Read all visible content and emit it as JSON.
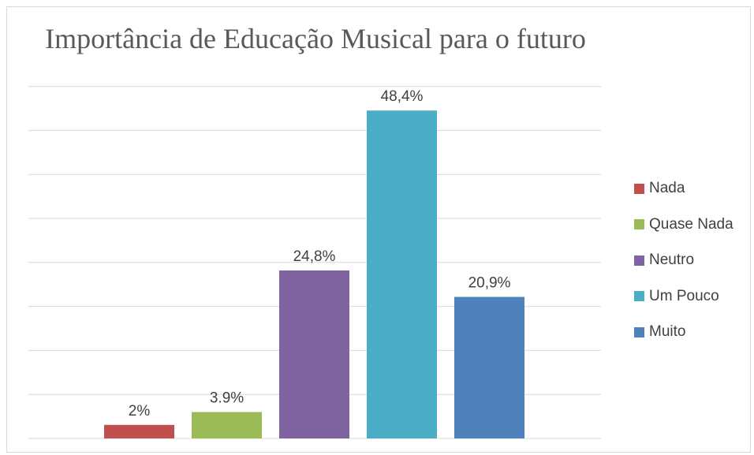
{
  "chart_data": {
    "type": "bar",
    "title": "Importância de Educação Musical para o futuro",
    "categories": [
      "Nada",
      "Quase Nada",
      "Neutro",
      "Um Pouco",
      "Muito"
    ],
    "values": [
      2,
      3.9,
      24.8,
      48.4,
      20.9
    ],
    "data_labels": [
      "2%",
      "3.9%",
      "24,8%",
      "48,4%",
      "20,9%"
    ],
    "colors": [
      "#c0504d",
      "#9bbb59",
      "#8064a2",
      "#4bacc6",
      "#4f81bd"
    ],
    "ylim": [
      0,
      52.5
    ],
    "grid": true,
    "legend": {
      "position": "right",
      "entries": [
        "Nada",
        "Quase Nada",
        "Neutro",
        "Um Pouco",
        "Muito"
      ]
    }
  }
}
